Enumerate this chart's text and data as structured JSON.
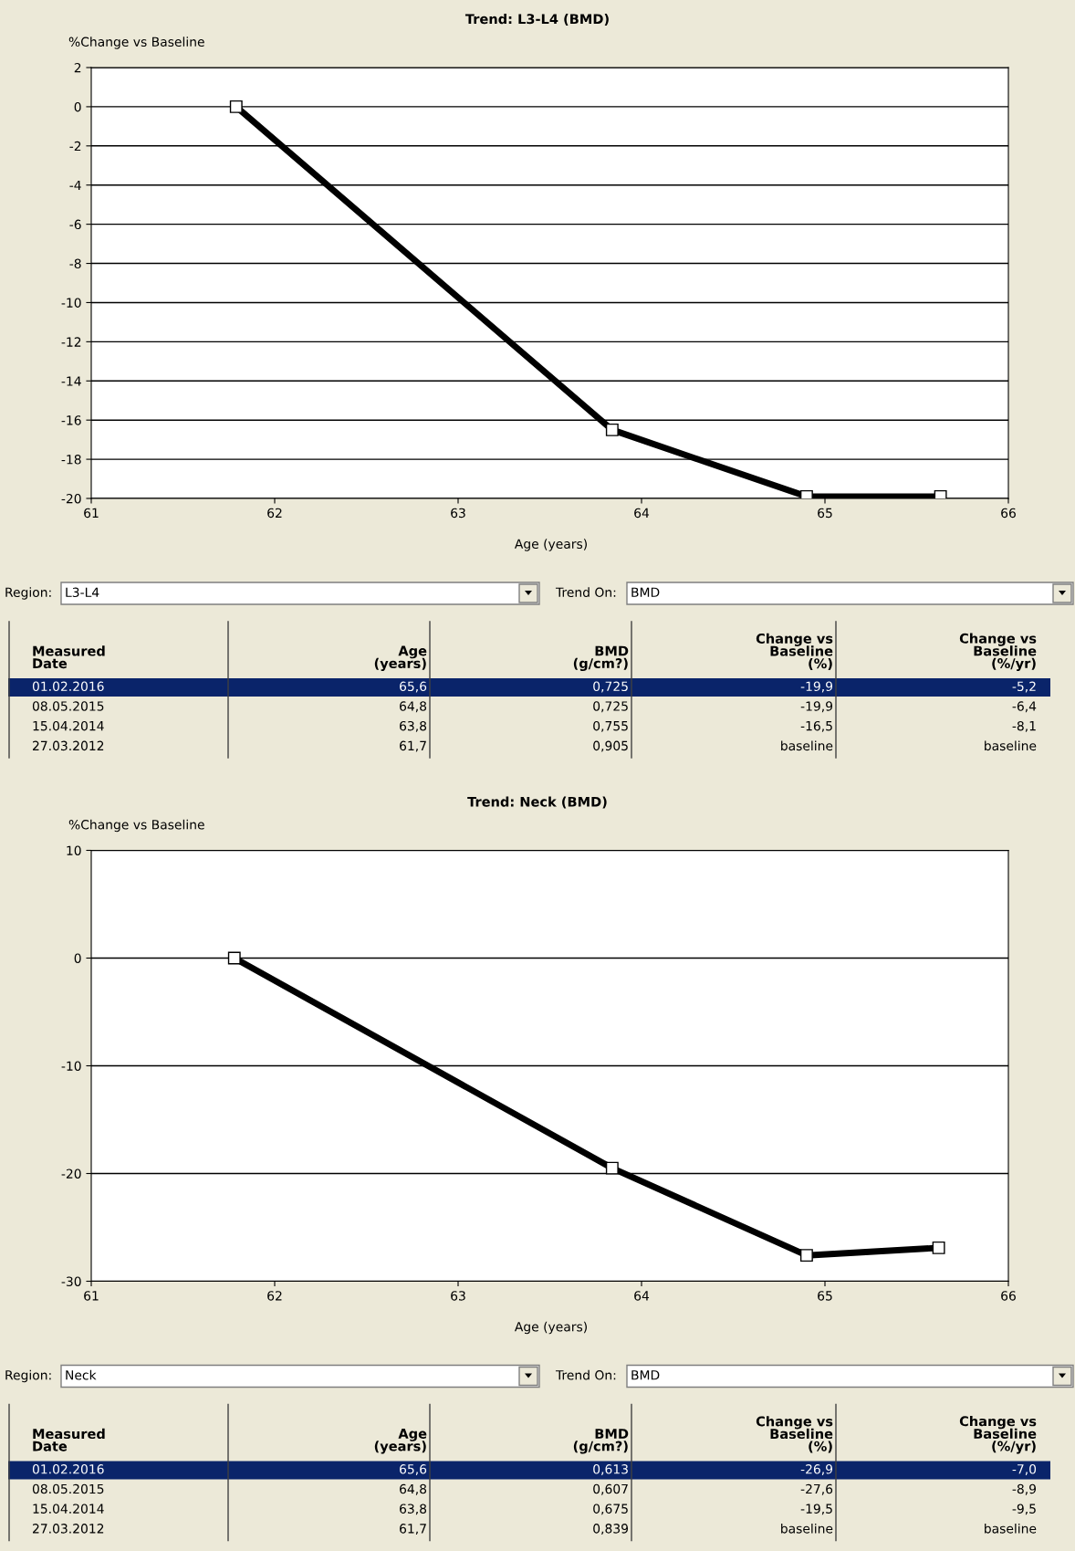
{
  "chart_data": [
    {
      "type": "line",
      "title": "Trend: L3-L4 (BMD)",
      "xlabel": "Age (years)",
      "ylabel": "%Change vs Baseline",
      "x": [
        61.79,
        63.84,
        64.9,
        65.63
      ],
      "series": [
        {
          "color": "#000000",
          "values": [
            0,
            -16.5,
            -19.9,
            -19.9
          ]
        }
      ],
      "xlim": [
        61,
        66
      ],
      "xticks": [
        61,
        62,
        63,
        64,
        65,
        66
      ],
      "ylim": [
        -20,
        2
      ],
      "yticks": [
        -20,
        -18,
        -16,
        -14,
        -12,
        -10,
        -8,
        -6,
        -4,
        -2,
        0,
        2
      ],
      "grid": "y",
      "marker": "square",
      "line_style": "solid",
      "legend": false,
      "annotations": [
        "Region:",
        "L3-L4",
        "Trend On:",
        "BMD",
        "Measured\nDate",
        "Age\n(years)",
        "BMD\n(g/cm?)",
        "Change vs\nBaseline\n(%)",
        "Change vs\nBaseline\n(%/yr)",
        "01.02.2016",
        "65,6",
        "0,725",
        "-19,9",
        "-5,2",
        "08.05.2015",
        "64,8",
        "0,725",
        "-19,9",
        "-6,4",
        "15.04.2014",
        "63,8",
        "0,755",
        "-16,5",
        "-8,1",
        "27.03.2012",
        "61,7",
        "0,905",
        "baseline",
        "baseline"
      ]
    },
    {
      "type": "line",
      "title": "Trend: Neck (BMD)",
      "xlabel": "Age (years)",
      "ylabel": "%Change vs Baseline",
      "x": [
        61.78,
        63.84,
        64.9,
        65.62
      ],
      "series": [
        {
          "color": "#000000",
          "values": [
            0,
            -19.5,
            -27.6,
            -26.9
          ]
        }
      ],
      "xlim": [
        61,
        66
      ],
      "xticks": [
        61,
        62,
        63,
        64,
        65,
        66
      ],
      "ylim": [
        -30,
        10
      ],
      "yticks": [
        -30,
        -20,
        -10,
        0,
        10
      ],
      "grid": "y",
      "marker": "square",
      "line_style": "solid",
      "legend": false,
      "annotations": [
        "Region:",
        "Neck",
        "Trend On:",
        "BMD",
        "Measured\nDate",
        "Age\n(years)",
        "BMD\n(g/cm?)",
        "Change vs\nBaseline\n(%)",
        "Change vs\nBaseline\n(%/yr)",
        "01.02.2016",
        "65,6",
        "0,613",
        "-26,9",
        "-7,0",
        "08.05.2015",
        "64,8",
        "0,607",
        "-27,6",
        "-8,9",
        "15.04.2014",
        "63,8",
        "0,675",
        "-19,5",
        "-9,5",
        "27.03.2012",
        "61,7",
        "0,839",
        "baseline",
        "baseline"
      ]
    }
  ]
}
